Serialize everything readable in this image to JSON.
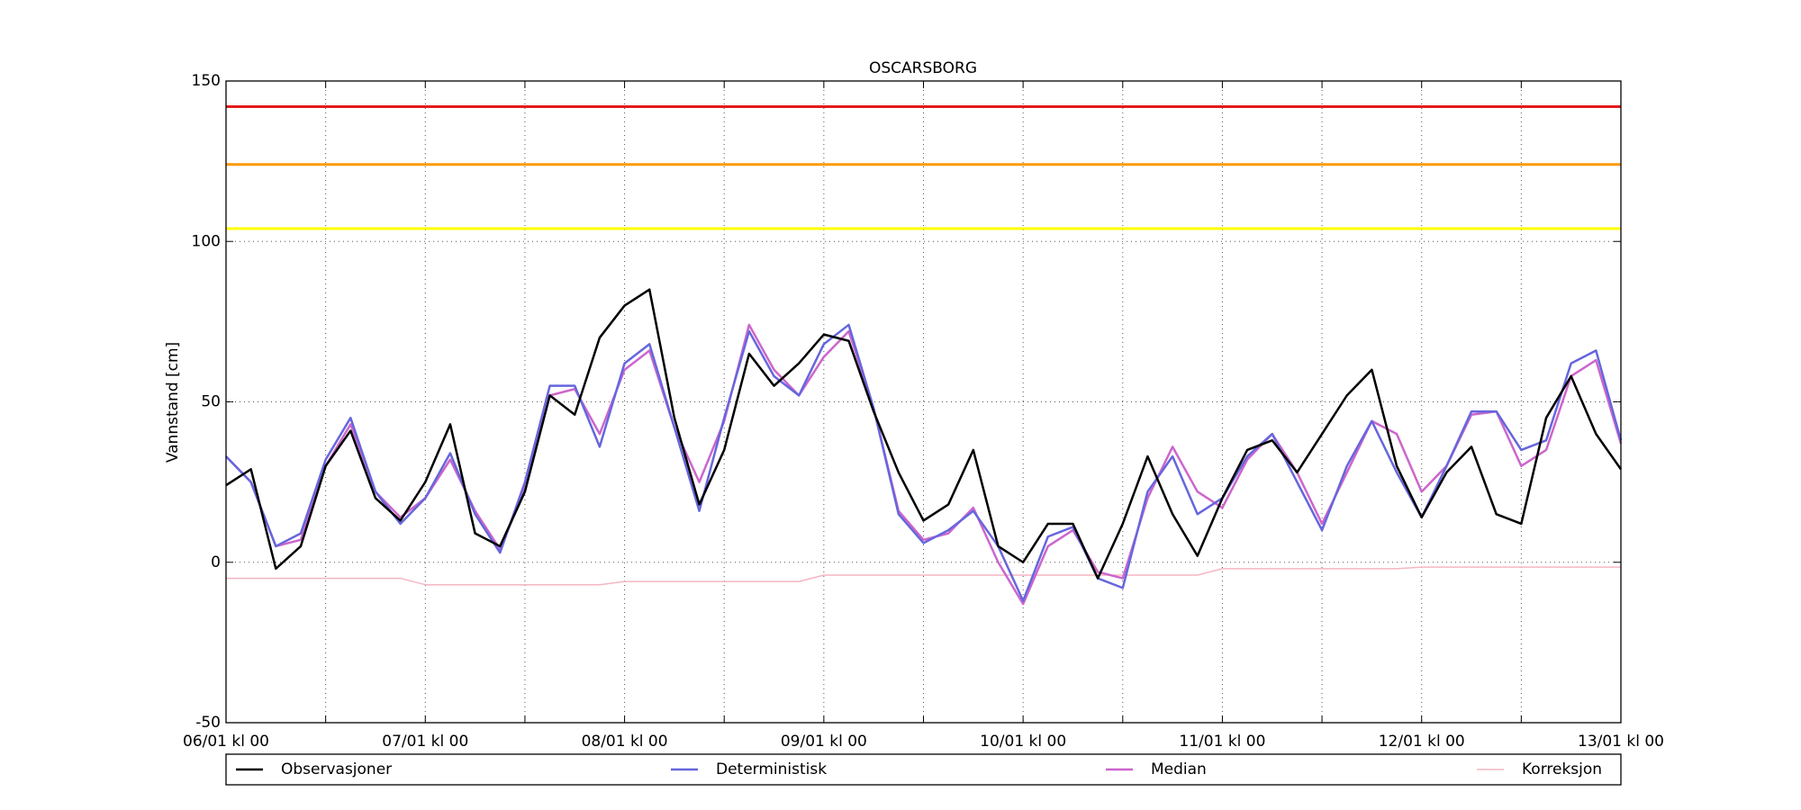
{
  "chart_data": {
    "type": "line",
    "title": "OSCARSBORG",
    "y_label": "Vannstand [cm]",
    "categories": [
      "06/01 kl 00",
      null,
      null,
      null,
      null,
      null,
      null,
      null,
      "07/01 kl 00",
      null,
      null,
      null,
      null,
      null,
      null,
      null,
      "08/01 kl 00",
      null,
      null,
      null,
      null,
      null,
      null,
      null,
      "09/01 kl 00",
      null,
      null,
      null,
      null,
      null,
      null,
      null,
      "10/01 kl 00",
      null,
      null,
      null,
      null,
      null,
      null,
      null,
      "11/01 kl 00",
      null,
      null,
      null,
      null,
      null,
      null,
      null,
      "12/01 kl 00",
      null,
      null,
      null,
      null,
      null,
      null,
      null,
      "13/01 kl 00"
    ],
    "series": [
      {
        "name": "Observasjoner",
        "color": "#000000",
        "values": [
          24,
          29,
          -2,
          5,
          30,
          41,
          20,
          13,
          25,
          43,
          9,
          5,
          22,
          52,
          46,
          70,
          80,
          85,
          45,
          18,
          35,
          65,
          55,
          62,
          71,
          69,
          47,
          28,
          13,
          18,
          35,
          5,
          0,
          12,
          12,
          -5,
          12,
          33,
          15,
          2,
          20,
          35,
          38,
          28,
          40,
          52,
          60,
          30,
          14,
          28,
          36,
          15,
          12,
          45,
          58,
          40,
          29
        ]
      },
      {
        "name": "Deterministisk",
        "color": "#6666dd",
        "values": [
          33,
          25,
          5,
          9,
          32,
          45,
          22,
          12,
          20,
          34,
          15,
          3,
          25,
          55,
          55,
          36,
          62,
          68,
          42,
          16,
          45,
          72,
          58,
          52,
          68,
          74,
          48,
          15,
          6,
          10,
          16,
          5,
          -12,
          8,
          11,
          -5,
          -8,
          22,
          33,
          15,
          20,
          33,
          40,
          25,
          10,
          30,
          44,
          28,
          14,
          30,
          47,
          47,
          35,
          38,
          62,
          66,
          38
        ]
      },
      {
        "name": "Median",
        "color": "#cc66cc",
        "values": [
          33,
          25,
          5,
          7,
          30,
          43,
          22,
          14,
          20,
          32,
          16,
          4,
          23,
          52,
          54,
          40,
          60,
          66,
          42,
          25,
          44,
          74,
          60,
          52,
          64,
          72,
          48,
          16,
          7,
          9,
          17,
          0,
          -13,
          5,
          10,
          -3,
          -5,
          20,
          36,
          22,
          17,
          32,
          40,
          28,
          12,
          28,
          44,
          40,
          22,
          30,
          46,
          47,
          30,
          35,
          58,
          63,
          37
        ]
      },
      {
        "name": "Korreksjon",
        "color": "#f4b6c2",
        "values": [
          -5,
          -5,
          -5,
          -5,
          -5,
          -5,
          -5,
          -5,
          -7,
          -7,
          -7,
          -7,
          -7,
          -7,
          -7,
          -7,
          -6,
          -6,
          -6,
          -6,
          -6,
          -6,
          -6,
          -6,
          -4,
          -4,
          -4,
          -4,
          -4,
          -4,
          -4,
          -4,
          -4,
          -4,
          -4,
          -4,
          -4,
          -4,
          -4,
          -4,
          -2,
          -2,
          -2,
          -2,
          -2,
          -2,
          -2,
          -2,
          -1.5,
          -1.5,
          -1.5,
          -1.5,
          -1.5,
          -1.5,
          -1.5,
          -1.5,
          -1.5
        ]
      }
    ],
    "thresholds": [
      {
        "value": 142,
        "color": "#e41a1c"
      },
      {
        "value": 124,
        "color": "#ff9900"
      },
      {
        "value": 104,
        "color": "#ffff00"
      }
    ],
    "ylim": [
      -50,
      150
    ],
    "yticks": [
      -50,
      0,
      50,
      100,
      150
    ],
    "grid": true,
    "legend": "bottom"
  }
}
